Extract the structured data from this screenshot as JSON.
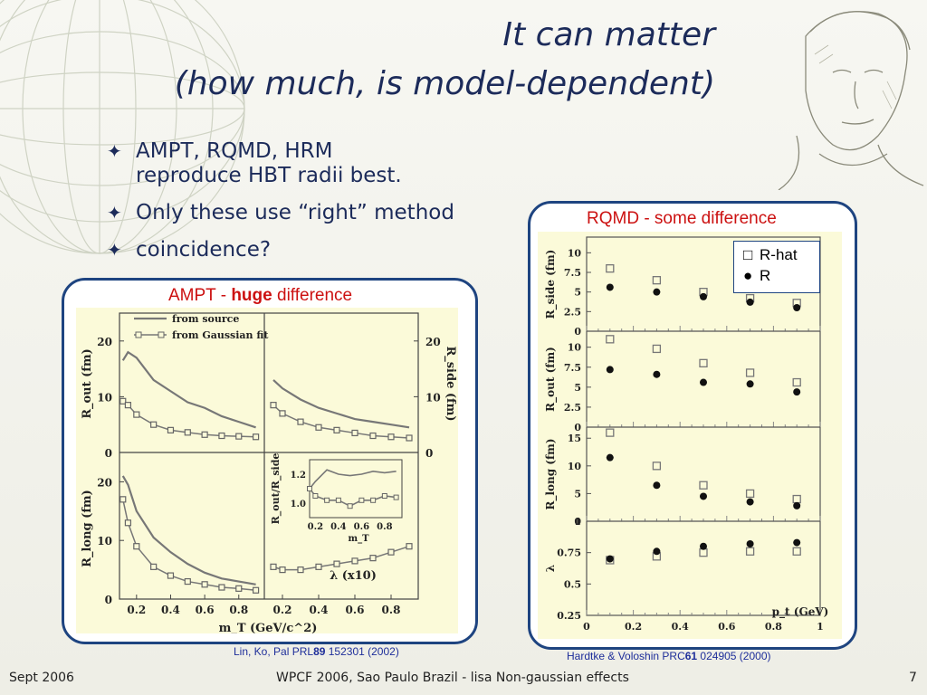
{
  "slide": {
    "title_line1": "It can matter",
    "title_line2": "(how much, is model-dependent)",
    "bullets": [
      {
        "line1": "AMPT, RQMD, HRM",
        "line2": "reproduce HBT radii best."
      },
      {
        "line1": "Only these use “right” method",
        "line2": ""
      },
      {
        "line1": "coincidence?",
        "line2": ""
      }
    ],
    "bullet_symbol": "✦",
    "footer_left": "Sept 2006",
    "footer_center": "WPCF 2006, Sao Paulo Brazil - lisa Non-gaussian effects",
    "footer_right": "7",
    "accent_color": "#1c2b5a",
    "panel_border_color": "#1e4480"
  },
  "left_panel": {
    "caption_pre": "AMPT - ",
    "caption_bold": "huge",
    "caption_post": " difference",
    "cite_pre": "Lin, Ko, Pal PRL",
    "cite_bold": "89",
    "cite_post": " 152301 (2002)"
  },
  "right_panel": {
    "caption": "RQMD - some difference",
    "cite_pre": "Hardtke & Voloshin PRC",
    "cite_bold": "61",
    "cite_post": " 024905 (2000)",
    "legend": [
      {
        "symbol": "open-square",
        "label": "R-hat",
        "glyph": "□"
      },
      {
        "symbol": "filled-circle",
        "label": "R",
        "glyph": "●"
      }
    ]
  },
  "chart_data": [
    {
      "type": "line",
      "title": "AMPT",
      "xlabel": "m_T (GeV/c^2)",
      "x_ticks": [
        "0.2",
        "0.4",
        "0.6",
        "0.8"
      ],
      "legend": [
        "from source",
        "from Gaussian fit"
      ],
      "xlim": [
        0.1,
        0.95
      ],
      "panels": [
        {
          "name": "R_out",
          "ylabel": "R_out (fm)",
          "ylim": [
            0,
            25
          ],
          "y_ticks": [
            "0",
            "10",
            "20"
          ],
          "series": [
            {
              "name": "from source",
              "x": [
                0.12,
                0.15,
                0.2,
                0.3,
                0.4,
                0.5,
                0.6,
                0.7,
                0.8,
                0.9
              ],
              "values": [
                16.5,
                18.0,
                17.0,
                13.0,
                11.0,
                9.0,
                8.0,
                6.5,
                5.5,
                4.5
              ]
            },
            {
              "name": "from Gaussian fit",
              "x": [
                0.12,
                0.15,
                0.2,
                0.3,
                0.4,
                0.5,
                0.6,
                0.7,
                0.8,
                0.9
              ],
              "values": [
                9.2,
                8.5,
                6.8,
                5.0,
                4.0,
                3.6,
                3.2,
                3.0,
                2.9,
                2.8
              ]
            }
          ]
        },
        {
          "name": "R_side",
          "ylabel": "R_side (fm)",
          "ylim": [
            0,
            25
          ],
          "y_ticks": [
            "0",
            "10",
            "20"
          ],
          "series": [
            {
              "name": "from source",
              "x": [
                0.15,
                0.2,
                0.3,
                0.4,
                0.5,
                0.6,
                0.7,
                0.8,
                0.9
              ],
              "values": [
                13.0,
                11.5,
                9.5,
                8.0,
                7.0,
                6.0,
                5.5,
                5.0,
                4.5
              ]
            },
            {
              "name": "from Gaussian fit",
              "x": [
                0.15,
                0.2,
                0.3,
                0.4,
                0.5,
                0.6,
                0.7,
                0.8,
                0.9
              ],
              "values": [
                8.5,
                7.0,
                5.5,
                4.5,
                4.0,
                3.5,
                3.0,
                2.8,
                2.6
              ]
            }
          ]
        },
        {
          "name": "R_long",
          "ylabel": "R_long (fm)",
          "ylim": [
            0,
            25
          ],
          "y_ticks": [
            "0",
            "10",
            "20"
          ],
          "series": [
            {
              "name": "from source",
              "x": [
                0.12,
                0.15,
                0.2,
                0.3,
                0.4,
                0.5,
                0.6,
                0.7,
                0.8,
                0.9
              ],
              "values": [
                21.0,
                19.5,
                15.0,
                10.5,
                8.0,
                6.0,
                4.5,
                3.5,
                3.0,
                2.5
              ]
            },
            {
              "name": "from Gaussian fit",
              "x": [
                0.12,
                0.15,
                0.2,
                0.3,
                0.4,
                0.5,
                0.6,
                0.7,
                0.8,
                0.9
              ],
              "values": [
                17.0,
                13.0,
                9.0,
                5.5,
                4.0,
                3.0,
                2.5,
                2.0,
                1.8,
                1.5
              ]
            }
          ]
        },
        {
          "name": "lambda",
          "ylabel": "λ (x10)",
          "ylim": [
            0,
            25
          ],
          "y_ticks": [
            "0",
            "10",
            "20"
          ],
          "series": [
            {
              "name": "from Gaussian fit",
              "x": [
                0.15,
                0.2,
                0.3,
                0.4,
                0.5,
                0.6,
                0.7,
                0.8,
                0.9
              ],
              "values": [
                5.5,
                5.0,
                5.0,
                5.5,
                6.0,
                6.5,
                7.0,
                8.0,
                9.0
              ]
            }
          ]
        },
        {
          "name": "inset R_out/R_side",
          "ylabel": "R_out/R_side",
          "xlabel": "m_T",
          "xlim": [
            0.15,
            0.95
          ],
          "ylim": [
            0.9,
            1.3
          ],
          "x_ticks": [
            "0.2",
            "0.4",
            "0.6",
            "0.8"
          ],
          "y_ticks": [
            "1.0",
            "1.2"
          ],
          "series": [
            {
              "name": "from source",
              "x": [
                0.15,
                0.2,
                0.3,
                0.4,
                0.5,
                0.6,
                0.7,
                0.8,
                0.9
              ],
              "values": [
                1.1,
                1.15,
                1.23,
                1.2,
                1.19,
                1.2,
                1.22,
                1.21,
                1.22
              ]
            },
            {
              "name": "from Gaussian fit",
              "x": [
                0.15,
                0.2,
                0.3,
                0.4,
                0.5,
                0.6,
                0.7,
                0.8,
                0.9
              ],
              "values": [
                1.1,
                1.05,
                1.02,
                1.02,
                0.98,
                1.02,
                1.02,
                1.05,
                1.04
              ]
            }
          ]
        }
      ]
    },
    {
      "type": "scatter",
      "title": "RQMD",
      "xlabel": "p_t (GeV)",
      "xlim": [
        0,
        1
      ],
      "x_ticks": [
        "0",
        "0.2",
        "0.4",
        "0.6",
        "0.8",
        "1"
      ],
      "panels": [
        {
          "name": "R_side",
          "ylabel": "R_side (fm)",
          "ylim": [
            0,
            12
          ],
          "y_ticks": [
            "0",
            "2.5",
            "5",
            "7.5",
            "10"
          ],
          "series": [
            {
              "name": "R-hat",
              "marker": "open-square",
              "x": [
                0.1,
                0.3,
                0.5,
                0.7,
                0.9
              ],
              "values": [
                8.0,
                6.5,
                5.0,
                4.2,
                3.6
              ]
            },
            {
              "name": "R",
              "marker": "filled-circle",
              "x": [
                0.1,
                0.3,
                0.5,
                0.7,
                0.9
              ],
              "values": [
                5.6,
                5.0,
                4.4,
                3.7,
                3.0
              ]
            }
          ]
        },
        {
          "name": "R_out",
          "ylabel": "R_out (fm)",
          "ylim": [
            0,
            12
          ],
          "y_ticks": [
            "0",
            "2.5",
            "5",
            "7.5",
            "10"
          ],
          "series": [
            {
              "name": "R-hat",
              "marker": "open-square",
              "x": [
                0.1,
                0.3,
                0.5,
                0.7,
                0.9
              ],
              "values": [
                11.0,
                9.8,
                8.0,
                6.8,
                5.6
              ]
            },
            {
              "name": "R",
              "marker": "filled-circle",
              "x": [
                0.1,
                0.3,
                0.5,
                0.7,
                0.9
              ],
              "values": [
                7.2,
                6.6,
                5.6,
                5.4,
                4.4
              ]
            }
          ]
        },
        {
          "name": "R_long",
          "ylabel": "R_long (fm)",
          "ylim": [
            0,
            17
          ],
          "y_ticks": [
            "0",
            "5",
            "10",
            "15"
          ],
          "series": [
            {
              "name": "R-hat",
              "marker": "open-square",
              "x": [
                0.1,
                0.3,
                0.5,
                0.7,
                0.9
              ],
              "values": [
                16.0,
                10.0,
                6.5,
                5.0,
                4.0
              ]
            },
            {
              "name": "R",
              "marker": "filled-circle",
              "x": [
                0.1,
                0.3,
                0.5,
                0.7,
                0.9
              ],
              "values": [
                11.5,
                6.5,
                4.5,
                3.5,
                2.8
              ]
            }
          ]
        },
        {
          "name": "lambda",
          "ylabel": "λ",
          "ylim": [
            0.25,
            1.0
          ],
          "y_ticks": [
            "0.25",
            "0.5",
            "0.75",
            "1"
          ],
          "series": [
            {
              "name": "R-hat",
              "marker": "open-square",
              "x": [
                0.1,
                0.3,
                0.5,
                0.7,
                0.9
              ],
              "values": [
                0.69,
                0.72,
                0.75,
                0.76,
                0.76
              ]
            },
            {
              "name": "R",
              "marker": "filled-circle",
              "x": [
                0.1,
                0.3,
                0.5,
                0.7,
                0.9
              ],
              "values": [
                0.7,
                0.76,
                0.8,
                0.82,
                0.83
              ]
            }
          ]
        }
      ]
    }
  ]
}
